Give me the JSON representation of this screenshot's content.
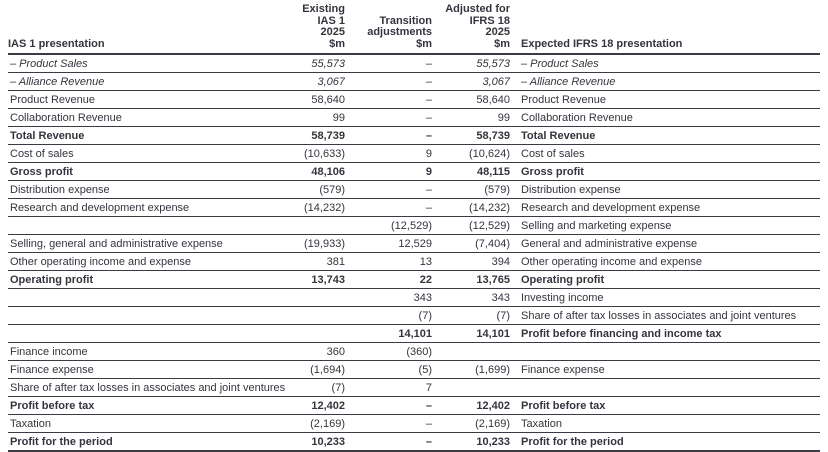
{
  "table": {
    "left_header": "IAS 1 presentation",
    "right_header": "Expected IFRS 18 presentation",
    "columns": {
      "existing": "Existing\nIAS 1\n2025\n$m",
      "transition": "Transition\nadjustments\n$m",
      "adjusted": "Adjusted for\nIFRS 18\n2025\n$m"
    },
    "rows": [
      {
        "left": "– Product Sales",
        "existing": "55,573",
        "transition": "–",
        "adjusted": "55,573",
        "right": "– Product Sales",
        "style": "italic"
      },
      {
        "left": "– Alliance Revenue",
        "existing": "3,067",
        "transition": "–",
        "adjusted": "3,067",
        "right": "– Alliance Revenue",
        "style": "italic"
      },
      {
        "left": "Product Revenue",
        "existing": "58,640",
        "transition": "–",
        "adjusted": "58,640",
        "right": "Product Revenue",
        "style": ""
      },
      {
        "left": "Collaboration Revenue",
        "existing": "99",
        "transition": "–",
        "adjusted": "99",
        "right": "Collaboration Revenue",
        "style": ""
      },
      {
        "left": "Total Revenue",
        "existing": "58,739",
        "transition": "–",
        "adjusted": "58,739",
        "right": "Total Revenue",
        "style": "bold"
      },
      {
        "left": "Cost of sales",
        "existing": "(10,633)",
        "transition": "9",
        "adjusted": "(10,624)",
        "right": "Cost of sales",
        "style": ""
      },
      {
        "left": "Gross profit",
        "existing": "48,106",
        "transition": "9",
        "adjusted": "48,115",
        "right": "Gross profit",
        "style": "bold"
      },
      {
        "left": "Distribution expense",
        "existing": "(579)",
        "transition": "–",
        "adjusted": "(579)",
        "right": "Distribution expense",
        "style": ""
      },
      {
        "left": "Research and development expense",
        "existing": "(14,232)",
        "transition": "–",
        "adjusted": "(14,232)",
        "right": "Research and development expense",
        "style": ""
      },
      {
        "left": "",
        "existing": "",
        "transition": "(12,529)",
        "adjusted": "(12,529)",
        "right": "Selling and marketing expense",
        "style": ""
      },
      {
        "left": "Selling, general and administrative expense",
        "existing": "(19,933)",
        "transition": "12,529",
        "adjusted": "(7,404)",
        "right": "General and administrative expense",
        "style": ""
      },
      {
        "left": "Other operating income and expense",
        "existing": "381",
        "transition": "13",
        "adjusted": "394",
        "right": "Other operating income and expense",
        "style": ""
      },
      {
        "left": "Operating profit",
        "existing": "13,743",
        "transition": "22",
        "adjusted": "13,765",
        "right": "Operating profit",
        "style": "bold"
      },
      {
        "left": "",
        "existing": "",
        "transition": "343",
        "adjusted": "343",
        "right": "Investing income",
        "style": ""
      },
      {
        "left": "",
        "existing": "",
        "transition": "(7)",
        "adjusted": "(7)",
        "right": "Share of after tax losses in associates and joint ventures",
        "style": ""
      },
      {
        "left": "",
        "existing": "",
        "transition": "14,101",
        "adjusted": "14,101",
        "right": "Profit before financing and income tax",
        "style": "bold"
      },
      {
        "left": "Finance income",
        "existing": "360",
        "transition": "(360)",
        "adjusted": "",
        "right": "",
        "style": ""
      },
      {
        "left": "Finance expense",
        "existing": "(1,694)",
        "transition": "(5)",
        "adjusted": "(1,699)",
        "right": "Finance expense",
        "style": ""
      },
      {
        "left": "Share of after tax losses in associates and joint ventures",
        "existing": "(7)",
        "transition": "7",
        "adjusted": "",
        "right": "",
        "style": ""
      },
      {
        "left": "Profit before tax",
        "existing": "12,402",
        "transition": "–",
        "adjusted": "12,402",
        "right": "Profit before tax",
        "style": "bold"
      },
      {
        "left": "Taxation",
        "existing": "(2,169)",
        "transition": "–",
        "adjusted": "(2,169)",
        "right": "Taxation",
        "style": ""
      },
      {
        "left": "Profit for the period",
        "existing": "10,233",
        "transition": "–",
        "adjusted": "10,233",
        "right": "Profit for the period",
        "style": "bold"
      }
    ]
  }
}
